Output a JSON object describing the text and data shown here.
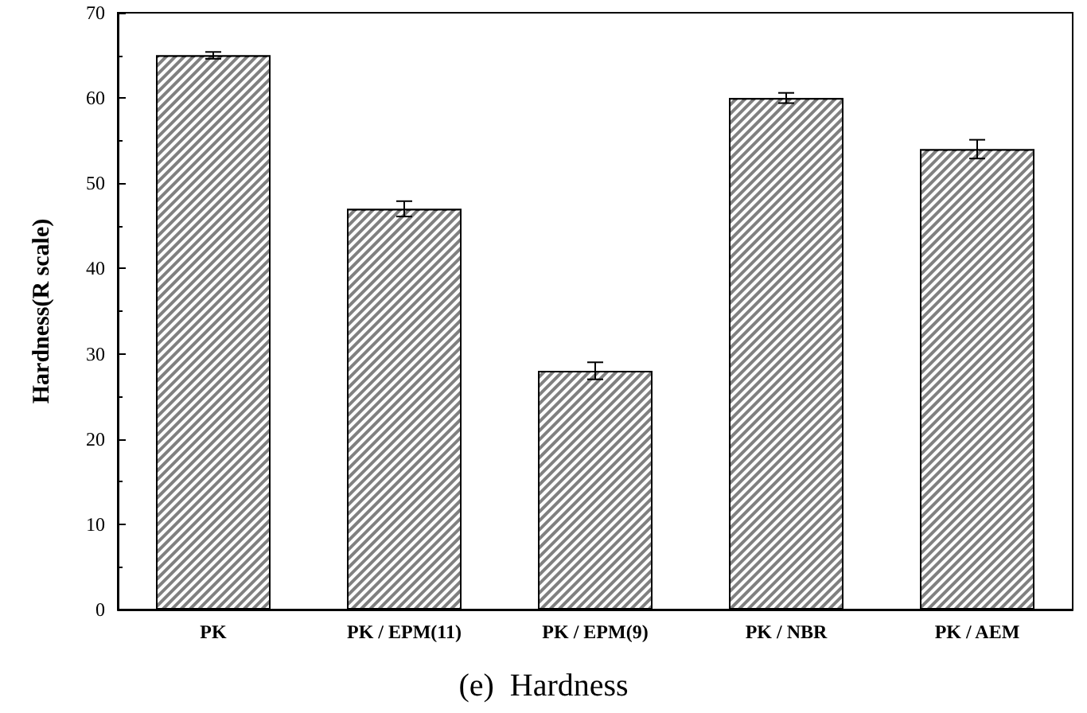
{
  "chart_data": {
    "type": "bar",
    "title": "(e)  Hardness",
    "ylabel": "Hardness(R scale)",
    "categories": [
      "PK",
      "PK / EPM(11)",
      "PK / EPM(9)",
      "PK / NBR",
      "PK / AEM"
    ],
    "values": [
      65,
      47,
      28,
      60,
      54
    ],
    "errors": [
      0.4,
      0.9,
      1.0,
      0.6,
      1.1
    ],
    "color": "#808080",
    "ylim": [
      0,
      70
    ],
    "yticks": [
      0,
      10,
      20,
      30,
      40,
      50,
      60,
      70
    ],
    "grid": false
  }
}
